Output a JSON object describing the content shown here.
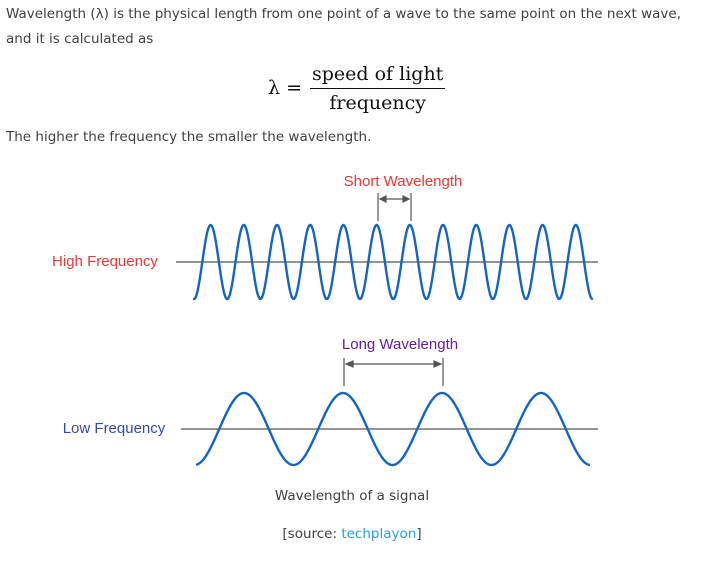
{
  "intro": {
    "text": "Wavelength (λ) is the physical length from one point of a wave to the same point on the next wave, and it is calculated as"
  },
  "formula": {
    "lhs": "λ =",
    "numerator": "speed of light",
    "denominator": "frequency"
  },
  "conclusion": "The higher the frequency the smaller the wavelength.",
  "figure": {
    "short_label": "Short Wavelength",
    "long_label": "Long Wavelength",
    "high_label": "High Frequency",
    "low_label": "Low Frequency",
    "colors": {
      "wave": "#1565c0",
      "red_label": "#e53935",
      "purple_label": "#6a1b9a",
      "blue_label": "#3949ab",
      "axis": "#555555"
    }
  },
  "caption": {
    "text": "Wavelength of a signal",
    "source_prefix": "[source: ",
    "source_link": "techplayon",
    "source_suffix": "]"
  }
}
